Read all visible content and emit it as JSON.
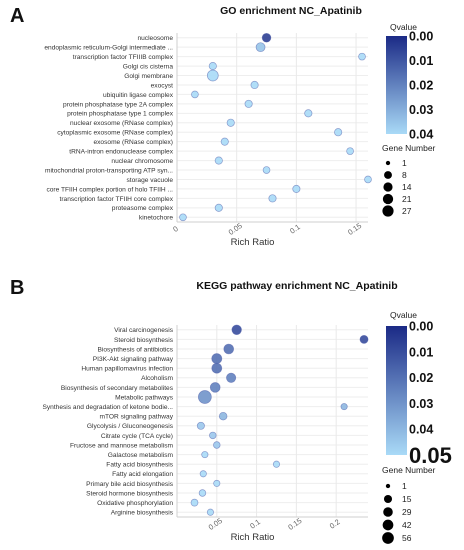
{
  "chart_data": [
    {
      "panel": "A",
      "type": "scatter",
      "title": "GO enrichment  NC_Apatinib",
      "xlabel": "Rich Ratio",
      "xlim": [
        0,
        0.16
      ],
      "x_ticks": [
        "0",
        "0.05",
        "0.1",
        "0.15"
      ],
      "x_tick_values": [
        0,
        0.05,
        0.1,
        0.15
      ],
      "grid": true,
      "legend_placement": "right",
      "color_legend": {
        "title": "Qvalue",
        "labels": [
          "0.00",
          "0.01",
          "0.02",
          "0.03",
          "0.04"
        ],
        "values": [
          0,
          0.01,
          0.02,
          0.03,
          0.04
        ],
        "low_color": "#1b2a86",
        "high_color": "#a9daf7"
      },
      "size_legend": {
        "title": "Gene Number",
        "labels": [
          "1",
          "8",
          "14",
          "21",
          "27"
        ],
        "values": [
          1,
          8,
          14,
          21,
          27
        ]
      },
      "terms": [
        {
          "term": "nucleosome",
          "x": 0.075,
          "q": 0.005,
          "n": 8
        },
        {
          "term": "endoplasmic reticulum-Golgi intermediate ...",
          "x": 0.07,
          "q": 0.035,
          "n": 9
        },
        {
          "term": "transcription factor TFIIIB complex",
          "x": 0.155,
          "q": 0.04,
          "n": 3
        },
        {
          "term": "Golgi cis cisterna",
          "x": 0.03,
          "q": 0.04,
          "n": 4
        },
        {
          "term": "Golgi membrane",
          "x": 0.03,
          "q": 0.04,
          "n": 18
        },
        {
          "term": "exocyst",
          "x": 0.065,
          "q": 0.04,
          "n": 4
        },
        {
          "term": "ubiquitin ligase complex",
          "x": 0.015,
          "q": 0.04,
          "n": 3
        },
        {
          "term": "protein phosphatase type 2A complex",
          "x": 0.06,
          "q": 0.04,
          "n": 4
        },
        {
          "term": "protein phosphatase type 1 complex",
          "x": 0.11,
          "q": 0.04,
          "n": 4
        },
        {
          "term": "nuclear exosome (RNase complex)",
          "x": 0.045,
          "q": 0.04,
          "n": 4
        },
        {
          "term": "cytoplasmic exosome (RNase complex)",
          "x": 0.135,
          "q": 0.04,
          "n": 4
        },
        {
          "term": "exosome (RNase complex)",
          "x": 0.04,
          "q": 0.04,
          "n": 4
        },
        {
          "term": "tRNA-intron endonuclease complex",
          "x": 0.145,
          "q": 0.04,
          "n": 3
        },
        {
          "term": "nuclear chromosome",
          "x": 0.035,
          "q": 0.04,
          "n": 4
        },
        {
          "term": "mitochondrial proton-transporting ATP syn...",
          "x": 0.075,
          "q": 0.04,
          "n": 3
        },
        {
          "term": "storage vacuole",
          "x": 0.16,
          "q": 0.04,
          "n": 3
        },
        {
          "term": "core TFIIH complex portion of holo TFIIH ...",
          "x": 0.1,
          "q": 0.04,
          "n": 4
        },
        {
          "term": "transcription factor TFIIH core complex",
          "x": 0.08,
          "q": 0.04,
          "n": 4
        },
        {
          "term": "proteasome complex",
          "x": 0.035,
          "q": 0.04,
          "n": 4
        },
        {
          "term": "kinetochore",
          "x": 0.005,
          "q": 0.04,
          "n": 3
        }
      ]
    },
    {
      "panel": "B",
      "type": "scatter",
      "title": "KEGG pathway enrichment NC_Apatinib",
      "xlabel": "Rich Ratio",
      "xlim": [
        0,
        0.24
      ],
      "x_ticks": [
        "0.05",
        "0.1",
        "0.15",
        "0.2"
      ],
      "x_tick_values": [
        0.05,
        0.1,
        0.15,
        0.2
      ],
      "grid": true,
      "legend_placement": "right",
      "color_legend": {
        "title": "Qvalue",
        "labels": [
          "0.00",
          "0.01",
          "0.02",
          "0.03",
          "0.04",
          "0.05"
        ],
        "values": [
          0,
          0.01,
          0.02,
          0.03,
          0.04,
          0.05
        ],
        "low_color": "#1b2a86",
        "high_color": "#a9daf7"
      },
      "size_legend": {
        "title": "Gene Number",
        "labels": [
          "1",
          "15",
          "29",
          "42",
          "56"
        ],
        "values": [
          1,
          15,
          29,
          42,
          56
        ]
      },
      "terms": [
        {
          "term": "Viral carcinogenesis",
          "x": 0.075,
          "q": 0.01,
          "n": 20
        },
        {
          "term": "Steroid biosynthesis",
          "x": 0.235,
          "q": 0.01,
          "n": 10
        },
        {
          "term": "Biosynthesis of antibiotics",
          "x": 0.065,
          "q": 0.02,
          "n": 22
        },
        {
          "term": "PI3K-Akt signaling pathway",
          "x": 0.05,
          "q": 0.02,
          "n": 24
        },
        {
          "term": "Human papillomavirus infection",
          "x": 0.05,
          "q": 0.02,
          "n": 23
        },
        {
          "term": "Alcoholism",
          "x": 0.068,
          "q": 0.025,
          "n": 18
        },
        {
          "term": "Biosynthesis of secondary metabolites",
          "x": 0.048,
          "q": 0.025,
          "n": 22
        },
        {
          "term": "Metabolic pathways",
          "x": 0.035,
          "q": 0.03,
          "n": 56
        },
        {
          "term": "Synthesis and degradation of ketone bodie...",
          "x": 0.21,
          "q": 0.04,
          "n": 3
        },
        {
          "term": "mTOR signaling pathway",
          "x": 0.058,
          "q": 0.04,
          "n": 8
        },
        {
          "term": "Glycolysis / Gluconeogenesis",
          "x": 0.03,
          "q": 0.045,
          "n": 6
        },
        {
          "term": "Citrate cycle (TCA cycle)",
          "x": 0.045,
          "q": 0.045,
          "n": 4
        },
        {
          "term": "Fructose and mannose metabolism",
          "x": 0.05,
          "q": 0.045,
          "n": 4
        },
        {
          "term": "Galactose metabolism",
          "x": 0.035,
          "q": 0.05,
          "n": 3
        },
        {
          "term": "Fatty acid biosynthesis",
          "x": 0.125,
          "q": 0.05,
          "n": 3
        },
        {
          "term": "Fatty acid elongation",
          "x": 0.033,
          "q": 0.05,
          "n": 3
        },
        {
          "term": "Primary bile acid biosynthesis",
          "x": 0.05,
          "q": 0.05,
          "n": 3
        },
        {
          "term": "Steroid hormone biosynthesis",
          "x": 0.032,
          "q": 0.05,
          "n": 4
        },
        {
          "term": "Oxidative phosphorylation",
          "x": 0.022,
          "q": 0.05,
          "n": 5
        },
        {
          "term": "Arginine biosynthesis",
          "x": 0.042,
          "q": 0.05,
          "n": 3
        }
      ]
    }
  ]
}
